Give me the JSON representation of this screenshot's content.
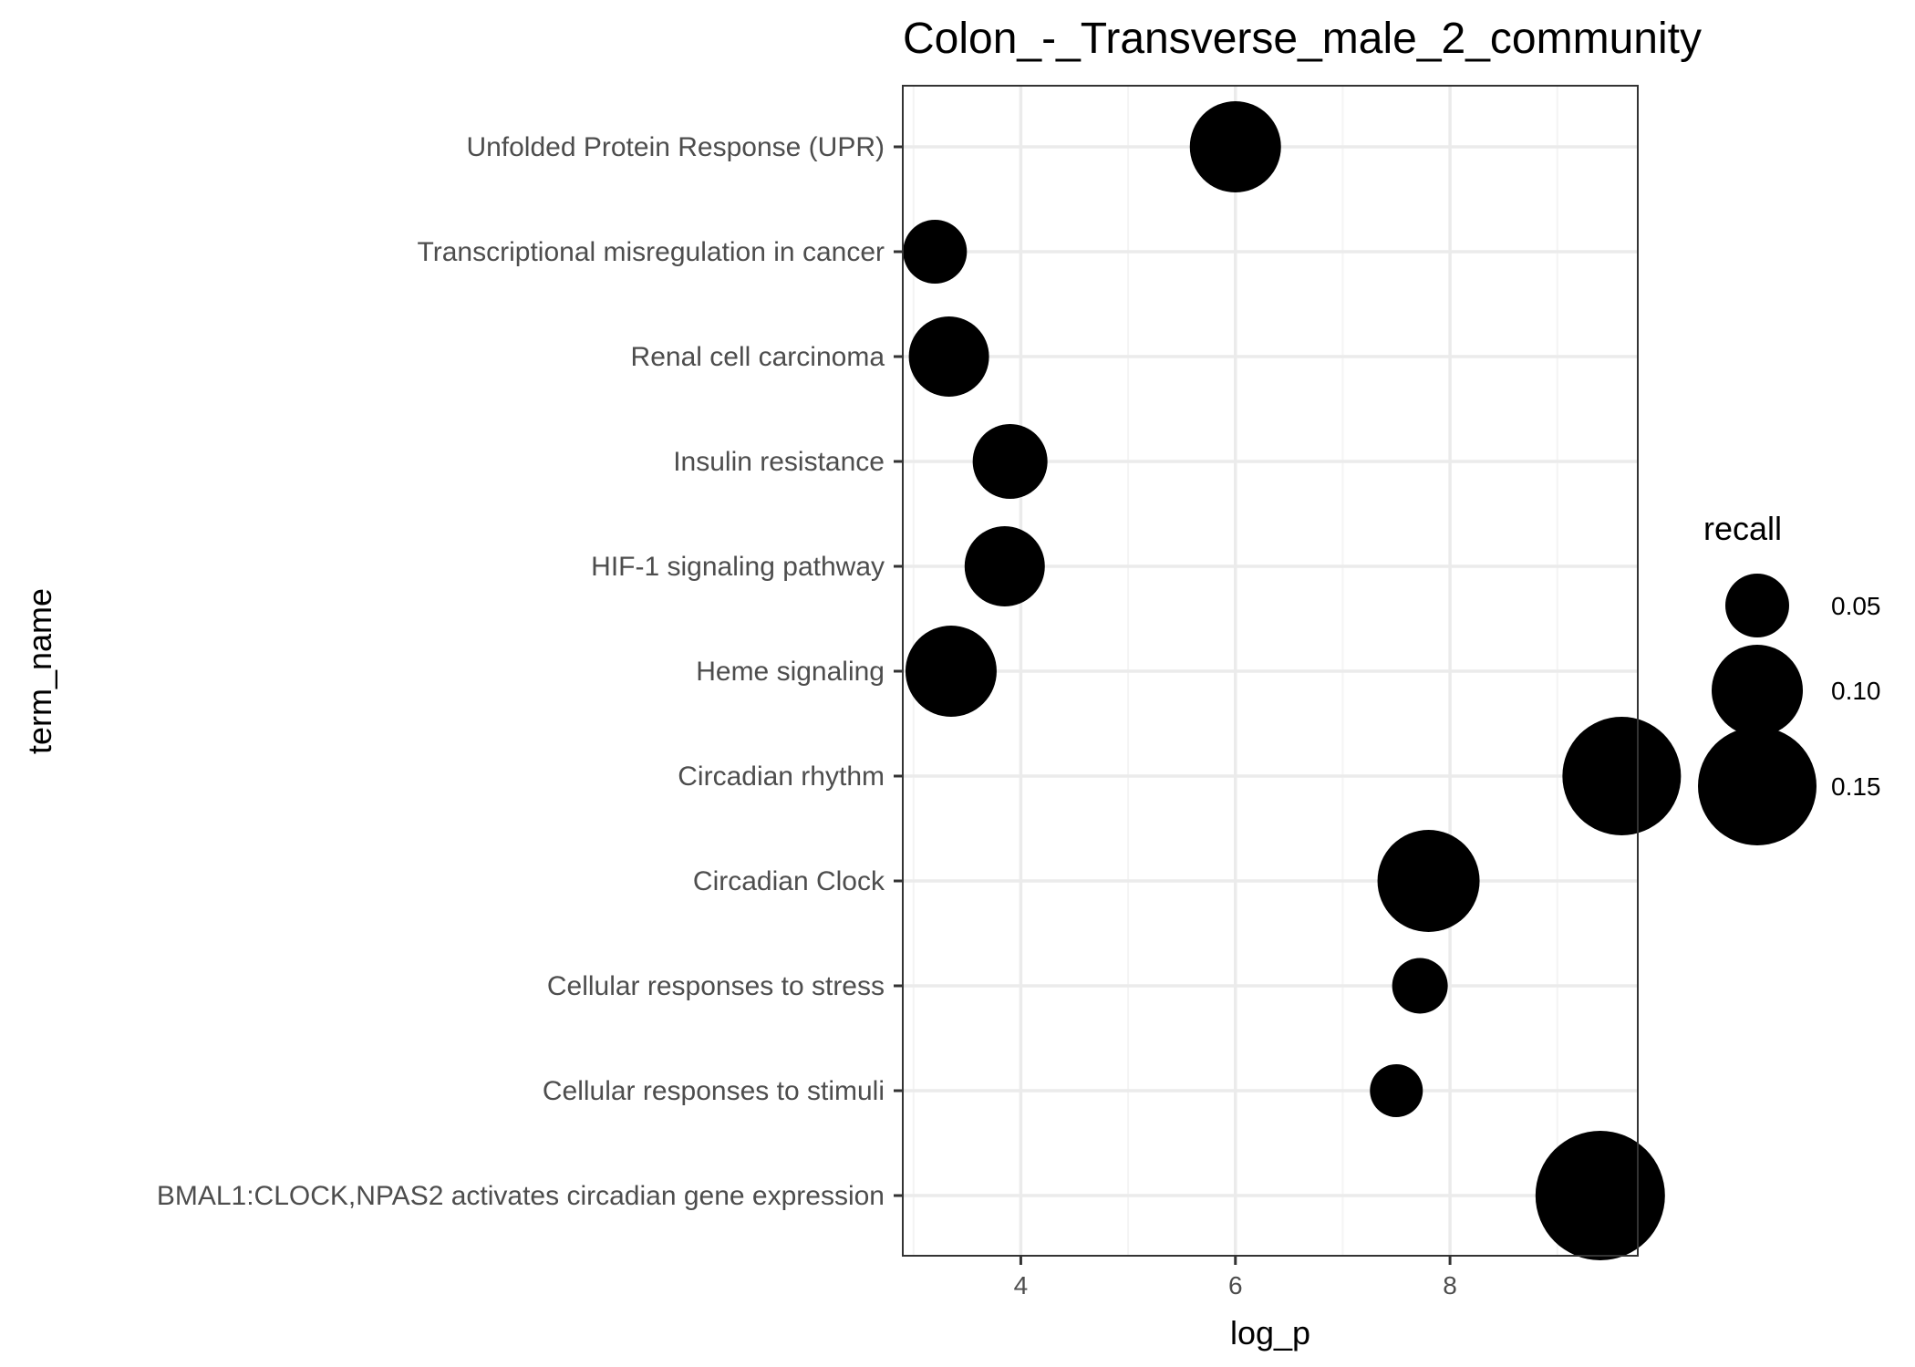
{
  "chart_data": {
    "type": "scatter",
    "title": "Colon_-_Transverse_male_2_community",
    "xlabel": "log_p",
    "ylabel": "term_name",
    "xlim": [
      2.9,
      9.75
    ],
    "x_ticks": [
      4,
      6,
      8
    ],
    "x_minor_ticks": [
      3,
      5,
      7,
      9
    ],
    "grid": true,
    "size_variable": "recall",
    "points": [
      {
        "term": "Unfolded Protein Response (UPR)",
        "log_p": 6.0,
        "recall": 0.1
      },
      {
        "term": "Transcriptional misregulation in cancer",
        "log_p": 3.2,
        "recall": 0.05
      },
      {
        "term": "Renal cell carcinoma",
        "log_p": 3.33,
        "recall": 0.08
      },
      {
        "term": "Insulin resistance",
        "log_p": 3.9,
        "recall": 0.07
      },
      {
        "term": "HIF-1 signaling pathway",
        "log_p": 3.85,
        "recall": 0.08
      },
      {
        "term": "Heme signaling",
        "log_p": 3.35,
        "recall": 0.1
      },
      {
        "term": "Circadian rhythm",
        "log_p": 9.6,
        "recall": 0.15
      },
      {
        "term": "Circadian Clock",
        "log_p": 7.8,
        "recall": 0.12
      },
      {
        "term": "Cellular responses to stress",
        "log_p": 7.72,
        "recall": 0.035
      },
      {
        "term": "Cellular responses to stimuli",
        "log_p": 7.5,
        "recall": 0.03
      },
      {
        "term": "BMAL1:CLOCK,NPAS2 activates circadian gene expression",
        "log_p": 9.4,
        "recall": 0.17
      }
    ],
    "legend": {
      "title": "recall",
      "position": "right",
      "entries": [
        {
          "label": "0.05",
          "value": 0.05
        },
        {
          "label": "0.10",
          "value": 0.1
        },
        {
          "label": "0.15",
          "value": 0.15
        }
      ]
    },
    "colors": {
      "point": "#000000",
      "panel_border": "#333333",
      "grid_major": "#ebebeb",
      "grid_minor": "#f4f4f4"
    }
  }
}
